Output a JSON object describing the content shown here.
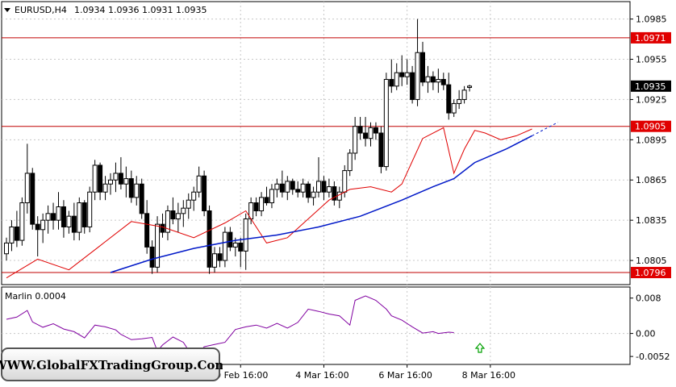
{
  "window": {
    "symbol_label": "EURUSD,H4",
    "ohlc_label": "1.0934 1.0936 1.0931 1.0935"
  },
  "indicator": {
    "label": "Marlin 0.0004"
  },
  "watermark": "WWW.GlobalFXTradingGroup.Com",
  "colors": {
    "background": "#ffffff",
    "grid": "#c8c8c8",
    "bull_candle": "#ffffff",
    "bear_candle": "#000000",
    "red_ma": "#e00000",
    "blue_ma": "#0018c8",
    "level_line": "#c00000",
    "level_badge": "#e00000",
    "oscillator": "#8000a0",
    "arrow": "#00a000"
  },
  "chart_data": [
    {
      "type": "candlestick",
      "symbol": "EURUSD",
      "timeframe": "H4",
      "current_price": "1.0935",
      "ylim": [
        1.0787,
        1.0998
      ],
      "y_ticks": [
        "1.0985",
        "1.0955",
        "1.0925",
        "1.0895",
        "1.0865",
        "1.0835",
        "1.0805"
      ],
      "x_ticks": [
        {
          "index": 45,
          "label": "29 Feb 16:00"
        },
        {
          "index": 61,
          "label": "4 Mar 16:00"
        },
        {
          "index": 77,
          "label": "6 Mar 16:00"
        },
        {
          "index": 93,
          "label": "8 Mar 16:00"
        }
      ],
      "levels": [
        "1.0971",
        "1.0905",
        "1.0796"
      ],
      "candles": [
        [
          1.081,
          1.0822,
          1.0805,
          1.0818
        ],
        [
          1.0818,
          1.0835,
          1.0812,
          1.083
        ],
        [
          1.083,
          1.0842,
          1.0815,
          1.082
        ],
        [
          1.082,
          1.0852,
          1.0816,
          1.0848
        ],
        [
          1.0848,
          1.0892,
          1.084,
          1.087
        ],
        [
          1.087,
          1.0874,
          1.0828,
          1.0832
        ],
        [
          1.0832,
          1.0838,
          1.0808,
          1.0828
        ],
        [
          1.0828,
          1.084,
          1.0818,
          1.0835
        ],
        [
          1.0835,
          1.0846,
          1.0825,
          1.084
        ],
        [
          1.084,
          1.0848,
          1.0828,
          1.0835
        ],
        [
          1.0835,
          1.0856,
          1.0828,
          1.0845
        ],
        [
          1.0845,
          1.085,
          1.0822,
          1.083
        ],
        [
          1.083,
          1.0842,
          1.0825,
          1.0838
        ],
        [
          1.0838,
          1.0848,
          1.082,
          1.0826
        ],
        [
          1.0826,
          1.0852,
          1.082,
          1.0848
        ],
        [
          1.0848,
          1.085,
          1.0825,
          1.083
        ],
        [
          1.083,
          1.086,
          1.0826,
          1.0856
        ],
        [
          1.0856,
          1.088,
          1.085,
          1.0876
        ],
        [
          1.0876,
          1.0878,
          1.085,
          1.0856
        ],
        [
          1.0856,
          1.0868,
          1.085,
          1.0862
        ],
        [
          1.0862,
          1.087,
          1.0854,
          1.0865
        ],
        [
          1.0865,
          1.0878,
          1.0856,
          1.087
        ],
        [
          1.087,
          1.0882,
          1.0858,
          1.0862
        ],
        [
          1.0862,
          1.0875,
          1.0852,
          1.0866
        ],
        [
          1.0866,
          1.0872,
          1.0848,
          1.0852
        ],
        [
          1.0852,
          1.0868,
          1.0846,
          1.0862
        ],
        [
          1.0862,
          1.0866,
          1.0836,
          1.084
        ],
        [
          1.084,
          1.085,
          1.081,
          1.0815
        ],
        [
          1.0815,
          1.082,
          1.0795,
          1.08
        ],
        [
          1.08,
          1.0838,
          1.0796,
          1.0832
        ],
        [
          1.0832,
          1.084,
          1.0822,
          1.0826
        ],
        [
          1.0826,
          1.0846,
          1.082,
          1.0842
        ],
        [
          1.0842,
          1.0852,
          1.0832,
          1.0836
        ],
        [
          1.0836,
          1.0848,
          1.0826,
          1.084
        ],
        [
          1.084,
          1.085,
          1.083,
          1.0844
        ],
        [
          1.0844,
          1.0855,
          1.0836,
          1.085
        ],
        [
          1.085,
          1.086,
          1.0842,
          1.0856
        ],
        [
          1.0856,
          1.0875,
          1.0852,
          1.0868
        ],
        [
          1.0868,
          1.0872,
          1.0838,
          1.0842
        ],
        [
          1.0842,
          1.0846,
          1.0795,
          1.08
        ],
        [
          1.08,
          1.0815,
          1.0796,
          1.081
        ],
        [
          1.081,
          1.0815,
          1.08,
          1.0805
        ],
        [
          1.0805,
          1.083,
          1.08,
          1.0826
        ],
        [
          1.0826,
          1.083,
          1.0812,
          1.0815
        ],
        [
          1.0815,
          1.0822,
          1.0808,
          1.0818
        ],
        [
          1.0818,
          1.0822,
          1.08,
          1.0812
        ],
        [
          1.0812,
          1.084,
          1.0798,
          1.0836
        ],
        [
          1.0836,
          1.0852,
          1.0832,
          1.0848
        ],
        [
          1.0848,
          1.0852,
          1.0838,
          1.0842
        ],
        [
          1.0842,
          1.0856,
          1.0838,
          1.0852
        ],
        [
          1.0852,
          1.086,
          1.0846,
          1.0848
        ],
        [
          1.0848,
          1.0862,
          1.0844,
          1.0858
        ],
        [
          1.0858,
          1.0866,
          1.0852,
          1.0862
        ],
        [
          1.0862,
          1.0872,
          1.0852,
          1.0856
        ],
        [
          1.0856,
          1.0868,
          1.085,
          1.0864
        ],
        [
          1.0864,
          1.0866,
          1.0854,
          1.0858
        ],
        [
          1.0858,
          1.0864,
          1.0852,
          1.0856
        ],
        [
          1.0856,
          1.0866,
          1.0852,
          1.0862
        ],
        [
          1.0862,
          1.0864,
          1.0848,
          1.0852
        ],
        [
          1.0852,
          1.086,
          1.0846,
          1.0856
        ],
        [
          1.0856,
          1.0882,
          1.0852,
          1.0864
        ],
        [
          1.0864,
          1.0868,
          1.085,
          1.0856
        ],
        [
          1.0856,
          1.0866,
          1.0852,
          1.086
        ],
        [
          1.086,
          1.0864,
          1.0846,
          1.085
        ],
        [
          1.085,
          1.086,
          1.0844,
          1.0856
        ],
        [
          1.0856,
          1.0876,
          1.0852,
          1.0872
        ],
        [
          1.0872,
          1.0888,
          1.0868,
          1.0885
        ],
        [
          1.0885,
          1.0912,
          1.088,
          1.0905
        ],
        [
          1.0905,
          1.0912,
          1.0895,
          1.09
        ],
        [
          1.09,
          1.0912,
          1.089,
          1.0896
        ],
        [
          1.0896,
          1.0908,
          1.089,
          1.0904
        ],
        [
          1.0904,
          1.0908,
          1.0895,
          1.09
        ],
        [
          1.09,
          1.0905,
          1.087,
          1.0875
        ],
        [
          1.0875,
          1.0945,
          1.0872,
          1.094
        ],
        [
          1.094,
          1.0955,
          1.093,
          1.0935
        ],
        [
          1.0935,
          1.0952,
          1.0932,
          1.0945
        ],
        [
          1.0945,
          1.0958,
          1.0935,
          1.0942
        ],
        [
          1.0942,
          1.0955,
          1.0936,
          1.0945
        ],
        [
          1.0945,
          1.095,
          1.0922,
          1.0925
        ],
        [
          1.0925,
          1.0985,
          1.092,
          1.096
        ],
        [
          1.096,
          1.0968,
          1.0935,
          1.0938
        ],
        [
          1.0938,
          1.095,
          1.093,
          1.0942
        ],
        [
          1.0942,
          1.0946,
          1.0932,
          1.0938
        ],
        [
          1.0938,
          1.0948,
          1.093,
          1.094
        ],
        [
          1.094,
          1.0945,
          1.0932,
          1.0936
        ],
        [
          1.0936,
          1.0945,
          1.091,
          1.0915
        ],
        [
          1.0915,
          1.0925,
          1.0912,
          1.0922
        ],
        [
          1.0922,
          1.0932,
          1.0918,
          1.0925
        ],
        [
          1.0925,
          1.0935,
          1.0922,
          1.0932
        ],
        [
          1.0934,
          1.0936,
          1.0931,
          1.0935
        ]
      ],
      "red_ma": [
        [
          0,
          1.0792
        ],
        [
          6,
          1.0806
        ],
        [
          12,
          1.0798
        ],
        [
          18,
          1.0816
        ],
        [
          24,
          1.0834
        ],
        [
          30,
          1.083
        ],
        [
          36,
          1.0822
        ],
        [
          42,
          1.0833
        ],
        [
          46,
          1.0842
        ],
        [
          50,
          1.0818
        ],
        [
          54,
          1.0822
        ],
        [
          58,
          1.0836
        ],
        [
          62,
          1.085
        ],
        [
          66,
          1.0858
        ],
        [
          70,
          1.086
        ],
        [
          74,
          1.0856
        ],
        [
          76,
          1.0862
        ],
        [
          80,
          1.0896
        ],
        [
          84,
          1.0904
        ],
        [
          86,
          1.087
        ],
        [
          88,
          1.0888
        ],
        [
          90,
          1.0902
        ],
        [
          92,
          1.09
        ],
        [
          95,
          1.0895
        ],
        [
          98,
          1.0898
        ],
        [
          101,
          1.0903
        ]
      ],
      "blue_ma": [
        [
          20,
          1.0796
        ],
        [
          28,
          1.0806
        ],
        [
          36,
          1.0814
        ],
        [
          44,
          1.082
        ],
        [
          52,
          1.0824
        ],
        [
          60,
          1.083
        ],
        [
          68,
          1.0838
        ],
        [
          76,
          1.085
        ],
        [
          82,
          1.086
        ],
        [
          86,
          1.0866
        ],
        [
          90,
          1.0878
        ],
        [
          96,
          1.0888
        ],
        [
          101,
          1.0898
        ],
        [
          106,
          1.0908
        ]
      ],
      "blue_ma_projection_from_index": 101
    },
    {
      "type": "line",
      "name": "Marlin 0.0004",
      "ylim": [
        -0.007,
        0.0105
      ],
      "y_ticks": [
        "0.008",
        "0.00",
        "-0.0052"
      ],
      "values": [
        [
          0,
          0.0032
        ],
        [
          4,
          0.0037
        ],
        [
          8,
          0.0052
        ],
        [
          10,
          0.0026
        ],
        [
          14,
          0.0014
        ],
        [
          18,
          0.0022
        ],
        [
          22,
          0.001
        ],
        [
          26,
          0.0004
        ],
        [
          30,
          -0.001
        ],
        [
          34,
          0.0019
        ],
        [
          38,
          0.0015
        ],
        [
          42,
          0.0008
        ],
        [
          44,
          -0.0002
        ],
        [
          48,
          -0.0014
        ],
        [
          52,
          -0.0012
        ],
        [
          56,
          -0.0009
        ],
        [
          58,
          -0.004
        ],
        [
          60,
          -0.0026
        ],
        [
          64,
          -0.0008
        ],
        [
          68,
          -0.002
        ],
        [
          72,
          -0.0056
        ],
        [
          76,
          -0.003
        ],
        [
          80,
          -0.0025
        ],
        [
          84,
          -0.002
        ],
        [
          88,
          0.0009
        ],
        [
          92,
          0.0015
        ],
        [
          96,
          0.0019
        ],
        [
          100,
          0.0012
        ],
        [
          104,
          0.0023
        ],
        [
          108,
          0.0012
        ],
        [
          112,
          0.0025
        ],
        [
          116,
          0.0055
        ],
        [
          120,
          0.005
        ],
        [
          124,
          0.0044
        ],
        [
          128,
          0.004
        ],
        [
          132,
          0.0019
        ],
        [
          134,
          0.0075
        ],
        [
          138,
          0.0085
        ],
        [
          142,
          0.0075
        ],
        [
          146,
          0.0055
        ],
        [
          148,
          0.004
        ],
        [
          152,
          0.003
        ],
        [
          156,
          0.0015
        ],
        [
          160,
          0.0001
        ],
        [
          164,
          0.0004
        ],
        [
          166,
          0.0
        ],
        [
          170,
          0.0003
        ],
        [
          172,
          0.0002
        ]
      ],
      "values_x_scale": 0.5,
      "arrow_at_index": 91
    }
  ]
}
